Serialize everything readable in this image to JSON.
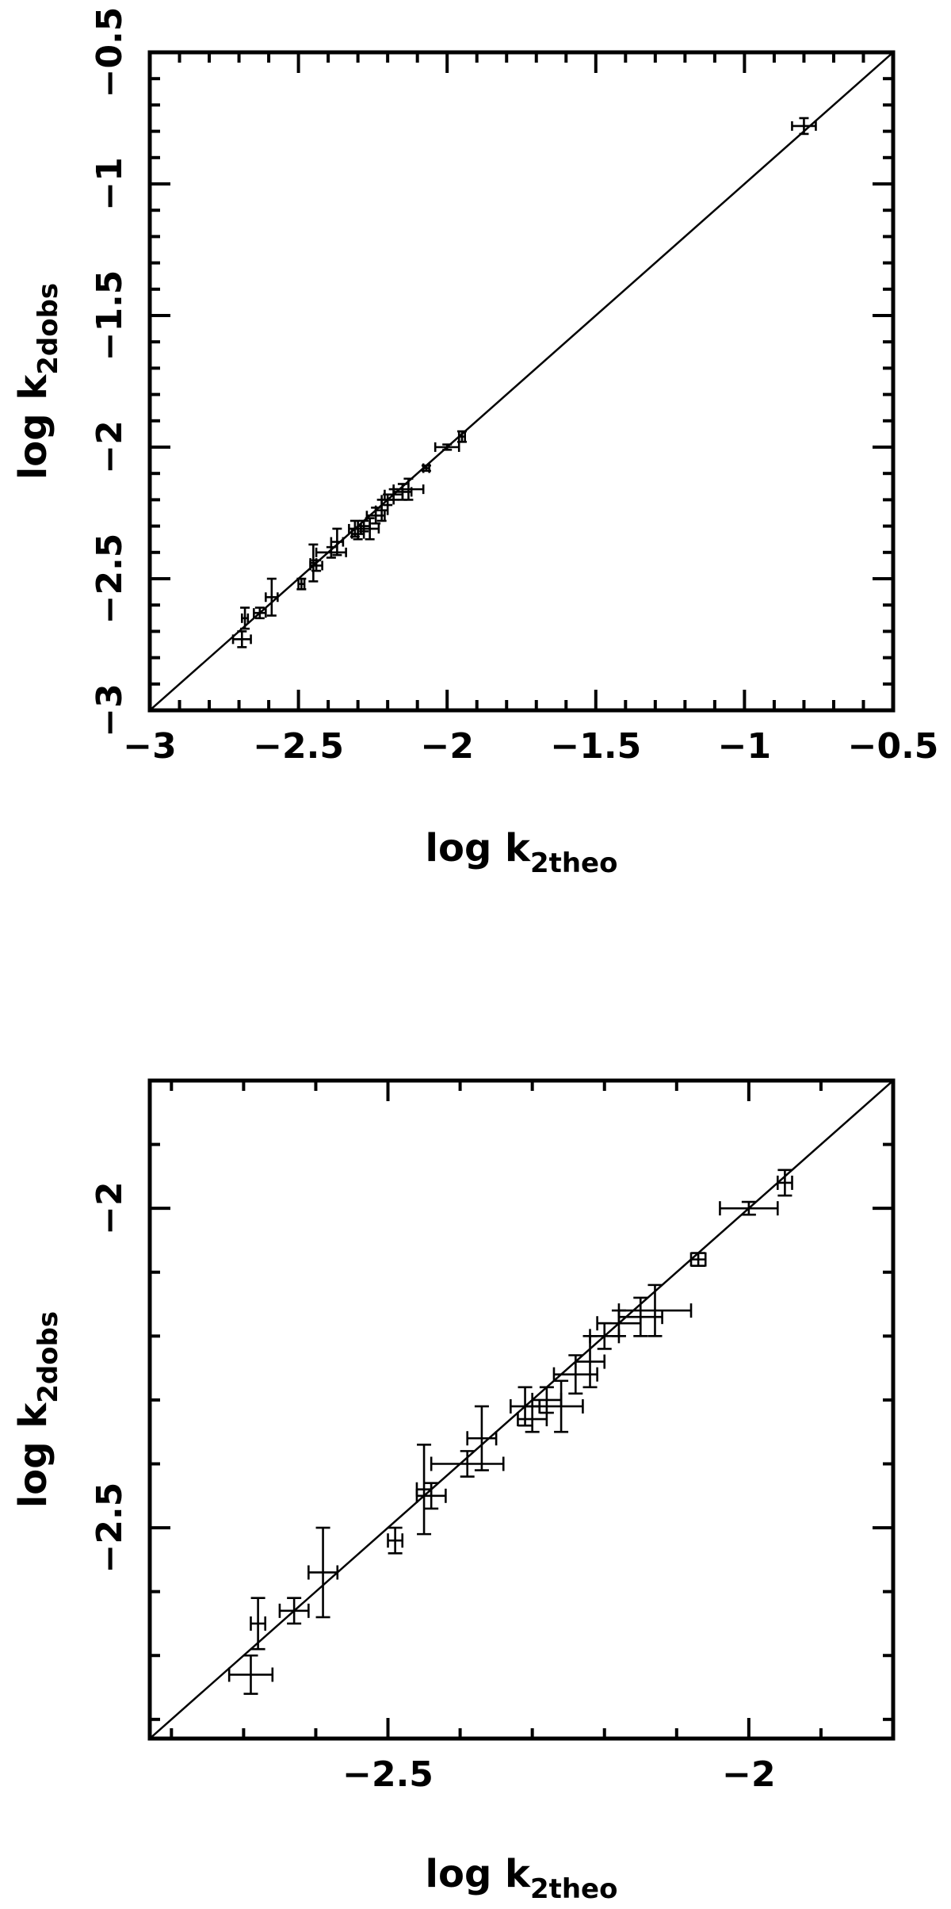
{
  "chart_data": [
    {
      "type": "scatter",
      "xlabel": {
        "main": "log k",
        "sub": "2theo"
      },
      "ylabel": {
        "main": "log k",
        "sub": "2dobs"
      },
      "xlim": [
        -3,
        -0.5
      ],
      "ylim": [
        -3,
        -0.5
      ],
      "xticks": [
        -3,
        -2.5,
        -2,
        -1.5,
        -1,
        -0.5
      ],
      "yticks": [
        -3,
        -2.5,
        -2,
        -1.5,
        -1,
        -0.5
      ],
      "xtick_labels": [
        "−3",
        "−2.5",
        "−2",
        "−1.5",
        "−1",
        "−0.5"
      ],
      "ytick_labels": [
        "−3",
        "−2.5",
        "−2",
        "−1.5",
        "−1",
        "−0.5"
      ],
      "reference_line": "y = x",
      "points": [
        {
          "x": -2.69,
          "y": -2.73,
          "xerr": 0.03,
          "yerr": 0.03
        },
        {
          "x": -2.68,
          "y": -2.65,
          "xerr": 0.01,
          "yerr": 0.04
        },
        {
          "x": -2.63,
          "y": -2.63,
          "xerr": 0.02,
          "yerr": 0.02
        },
        {
          "x": -2.59,
          "y": -2.57,
          "xerr": 0.02,
          "yerr": 0.07
        },
        {
          "x": -2.49,
          "y": -2.52,
          "xerr": 0.01,
          "yerr": 0.02
        },
        {
          "x": -2.45,
          "y": -2.44,
          "xerr": 0.01,
          "yerr": 0.07
        },
        {
          "x": -2.44,
          "y": -2.45,
          "xerr": 0.02,
          "yerr": 0.02
        },
        {
          "x": -2.39,
          "y": -2.4,
          "xerr": 0.05,
          "yerr": 0.02
        },
        {
          "x": -2.37,
          "y": -2.36,
          "xerr": 0.02,
          "yerr": 0.05
        },
        {
          "x": -2.31,
          "y": -2.31,
          "xerr": 0.02,
          "yerr": 0.03
        },
        {
          "x": -2.3,
          "y": -2.33,
          "xerr": 0.02,
          "yerr": 0.02
        },
        {
          "x": -2.28,
          "y": -2.3,
          "xerr": 0.02,
          "yerr": 0.02
        },
        {
          "x": -2.26,
          "y": -2.31,
          "xerr": 0.03,
          "yerr": 0.04
        },
        {
          "x": -2.24,
          "y": -2.26,
          "xerr": 0.03,
          "yerr": 0.03
        },
        {
          "x": -2.22,
          "y": -2.24,
          "xerr": 0.02,
          "yerr": 0.04
        },
        {
          "x": -2.2,
          "y": -2.2,
          "xerr": 0.02,
          "yerr": 0.02
        },
        {
          "x": -2.18,
          "y": -2.18,
          "xerr": 0.03,
          "yerr": 0.02
        },
        {
          "x": -2.15,
          "y": -2.17,
          "xerr": 0.03,
          "yerr": 0.03
        },
        {
          "x": -2.13,
          "y": -2.16,
          "xerr": 0.05,
          "yerr": 0.04
        },
        {
          "x": -2.07,
          "y": -2.08,
          "xerr": 0.01,
          "yerr": 0.01
        },
        {
          "x": -2.0,
          "y": -2.0,
          "xerr": 0.04,
          "yerr": 0.01
        },
        {
          "x": -1.95,
          "y": -1.96,
          "xerr": 0.01,
          "yerr": 0.02
        },
        {
          "x": -0.8,
          "y": -0.78,
          "xerr": 0.04,
          "yerr": 0.03
        }
      ]
    },
    {
      "type": "scatter",
      "xlabel": {
        "main": "log k",
        "sub": "2theo"
      },
      "ylabel": {
        "main": "log k",
        "sub": "2dobs"
      },
      "xlim": [
        -2.83,
        -1.8
      ],
      "ylim": [
        -2.83,
        -1.8
      ],
      "xticks": [
        -2.5,
        -2
      ],
      "yticks": [
        -2.5,
        -2
      ],
      "xtick_labels": [
        "−2.5",
        "−2"
      ],
      "ytick_labels": [
        "−2.5",
        "−2"
      ],
      "reference_line": "y = x",
      "points": [
        {
          "x": -2.69,
          "y": -2.73,
          "xerr": 0.03,
          "yerr": 0.03
        },
        {
          "x": -2.68,
          "y": -2.65,
          "xerr": 0.01,
          "yerr": 0.04
        },
        {
          "x": -2.63,
          "y": -2.63,
          "xerr": 0.02,
          "yerr": 0.02
        },
        {
          "x": -2.59,
          "y": -2.57,
          "xerr": 0.02,
          "yerr": 0.07
        },
        {
          "x": -2.49,
          "y": -2.52,
          "xerr": 0.01,
          "yerr": 0.02
        },
        {
          "x": -2.45,
          "y": -2.44,
          "xerr": 0.01,
          "yerr": 0.07
        },
        {
          "x": -2.44,
          "y": -2.45,
          "xerr": 0.02,
          "yerr": 0.02
        },
        {
          "x": -2.39,
          "y": -2.4,
          "xerr": 0.05,
          "yerr": 0.02
        },
        {
          "x": -2.37,
          "y": -2.36,
          "xerr": 0.02,
          "yerr": 0.05
        },
        {
          "x": -2.31,
          "y": -2.31,
          "xerr": 0.02,
          "yerr": 0.03
        },
        {
          "x": -2.3,
          "y": -2.33,
          "xerr": 0.02,
          "yerr": 0.02
        },
        {
          "x": -2.28,
          "y": -2.3,
          "xerr": 0.02,
          "yerr": 0.02
        },
        {
          "x": -2.26,
          "y": -2.31,
          "xerr": 0.03,
          "yerr": 0.04
        },
        {
          "x": -2.24,
          "y": -2.26,
          "xerr": 0.03,
          "yerr": 0.03
        },
        {
          "x": -2.22,
          "y": -2.24,
          "xerr": 0.02,
          "yerr": 0.04
        },
        {
          "x": -2.2,
          "y": -2.2,
          "xerr": 0.02,
          "yerr": 0.02
        },
        {
          "x": -2.18,
          "y": -2.18,
          "xerr": 0.03,
          "yerr": 0.02
        },
        {
          "x": -2.15,
          "y": -2.17,
          "xerr": 0.03,
          "yerr": 0.03
        },
        {
          "x": -2.13,
          "y": -2.16,
          "xerr": 0.05,
          "yerr": 0.04
        },
        {
          "x": -2.07,
          "y": -2.08,
          "xerr": 0.01,
          "yerr": 0.01
        },
        {
          "x": -2.0,
          "y": -2.0,
          "xerr": 0.04,
          "yerr": 0.01
        },
        {
          "x": -1.95,
          "y": -1.96,
          "xerr": 0.01,
          "yerr": 0.02
        }
      ]
    }
  ]
}
